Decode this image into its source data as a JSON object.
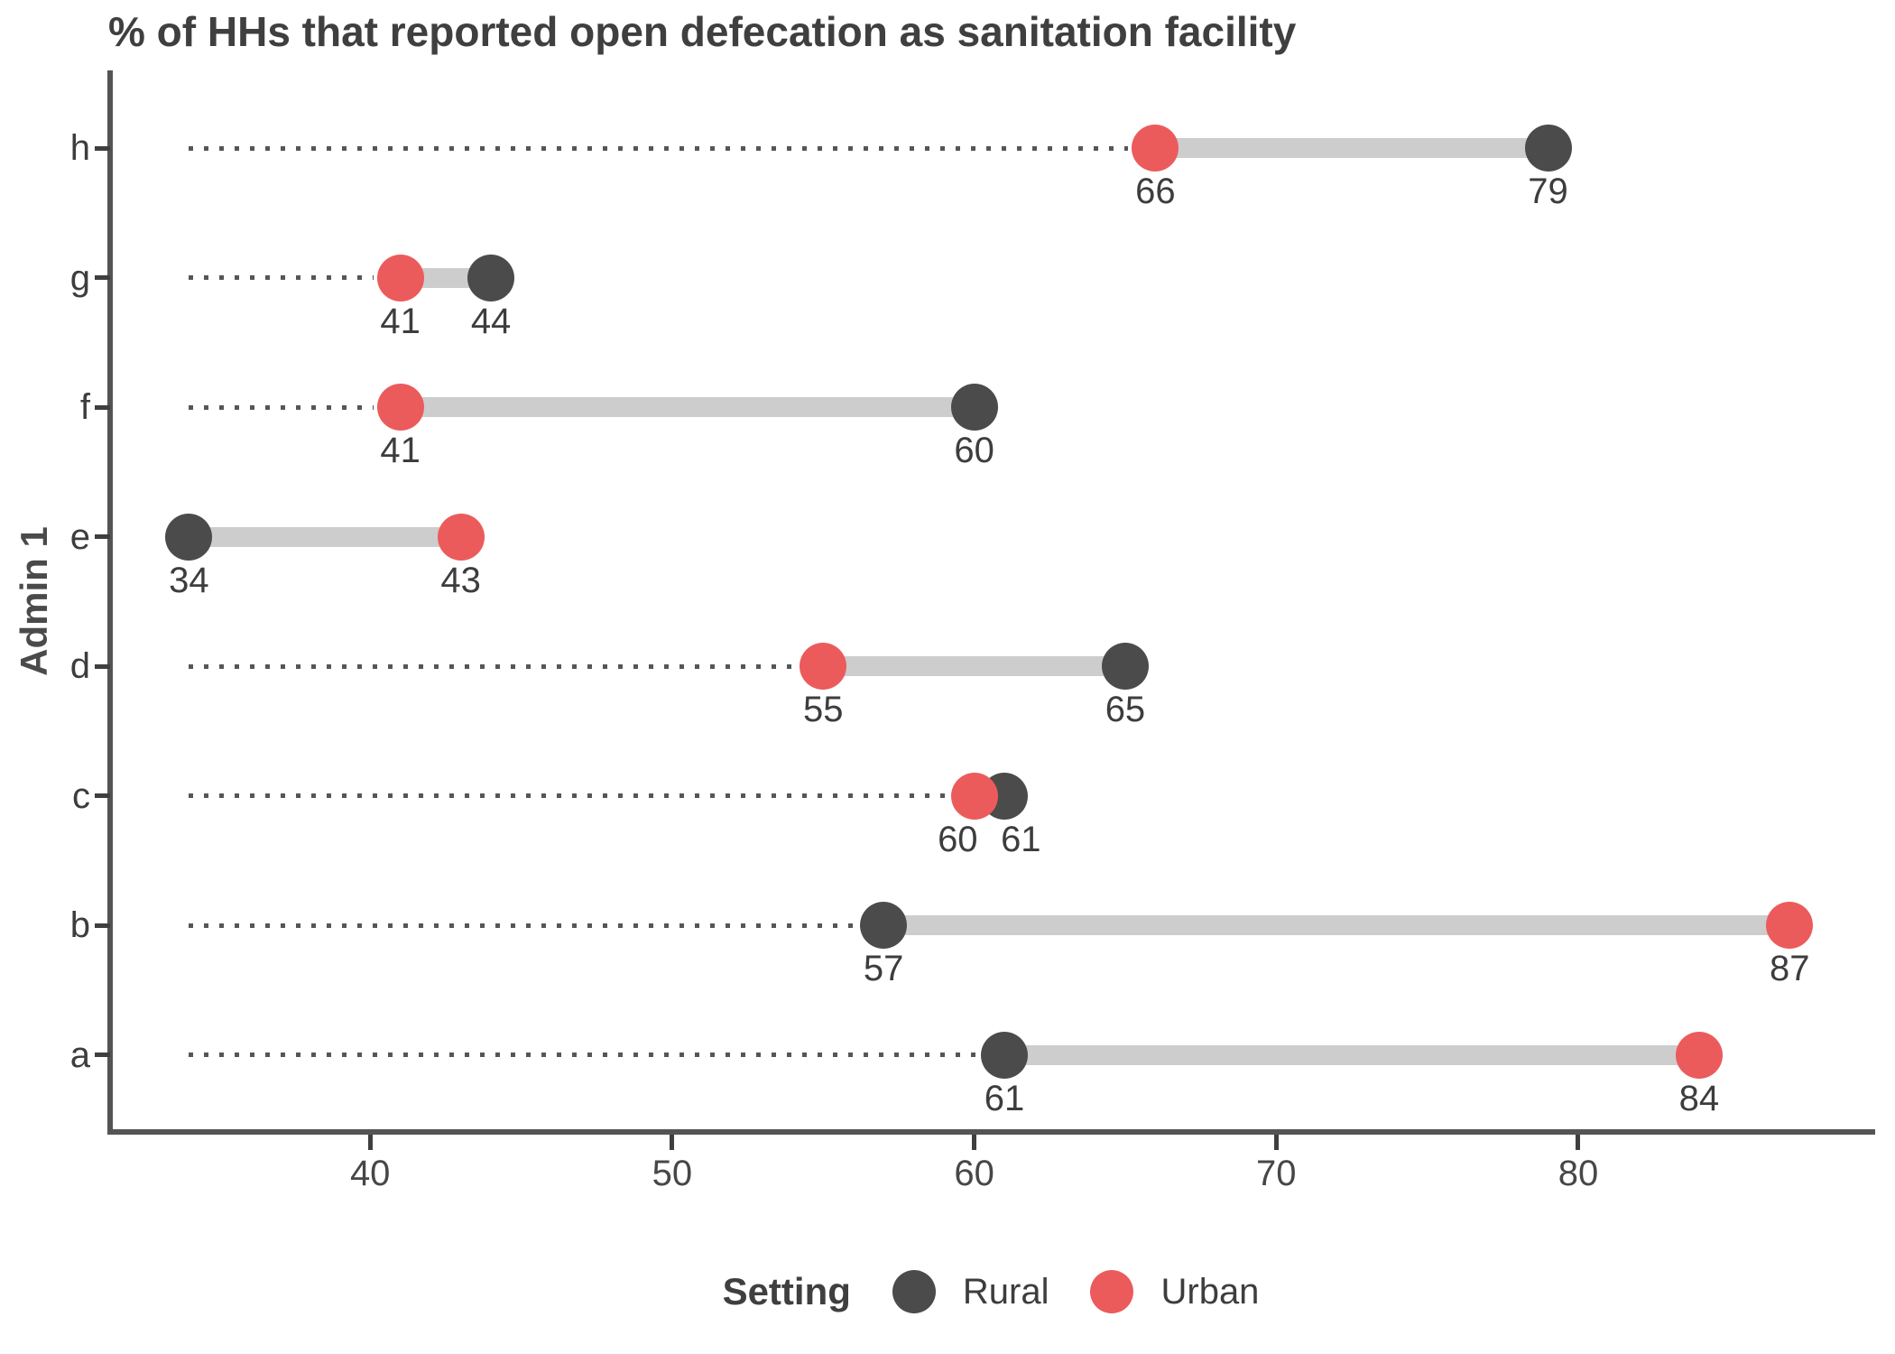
{
  "chart_data": {
    "type": "dumbbell",
    "title": "% of HHs that reported open defecation as sanitation facility",
    "ylabel": "Admin 1",
    "xlabel": "",
    "categories": [
      "h",
      "g",
      "f",
      "e",
      "d",
      "c",
      "b",
      "a"
    ],
    "series": [
      {
        "name": "Rural",
        "color": "#4b4b4b",
        "values": [
          79,
          44,
          60,
          34,
          65,
          61,
          57,
          61
        ]
      },
      {
        "name": "Urban",
        "color": "#ec5b5b",
        "values": [
          66,
          41,
          41,
          43,
          55,
          60,
          87,
          84
        ]
      }
    ],
    "x_ticks": [
      40,
      50,
      60,
      70,
      80
    ],
    "x_domain": [
      31.3,
      89.8
    ],
    "dot_guide_start": 34,
    "grid": "off",
    "value_labels": "below points",
    "legend": {
      "title": "Setting",
      "position": "bottom"
    }
  },
  "colors": {
    "rural": "#4b4b4b",
    "urban": "#ec5b5b",
    "connector": "#cdcdcd",
    "guide": "#565656",
    "axis": "#545454",
    "text": "#3d3d3d",
    "title": "#3f3f3f"
  }
}
